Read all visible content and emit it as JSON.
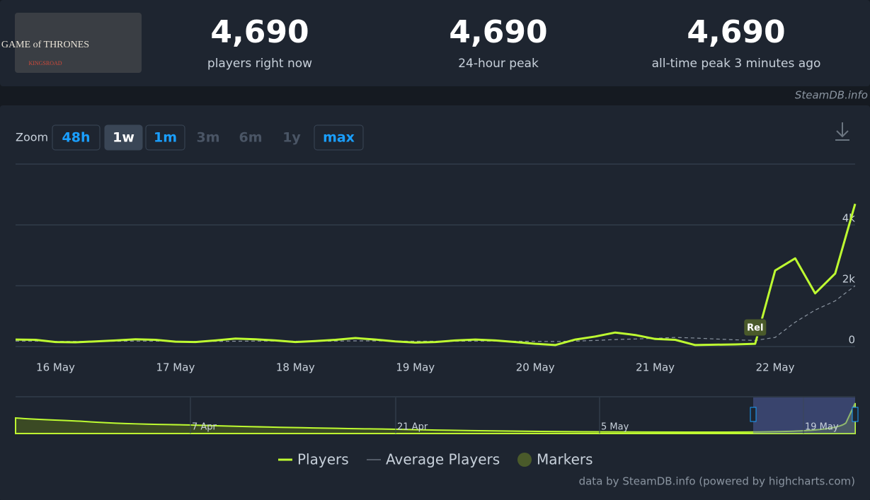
{
  "game_logo": [
    "GAME of THRONES",
    "KINGSROAD"
  ],
  "stats": [
    {
      "value": "4,690",
      "label": "players right now"
    },
    {
      "value": "4,690",
      "label": "24-hour peak"
    },
    {
      "value": "4,690",
      "label": "all-time peak 3 minutes ago"
    }
  ],
  "watermark": "SteamDB.info",
  "zoom": {
    "label": "Zoom",
    "buttons": [
      "48h",
      "1w",
      "1m",
      "3m",
      "6m",
      "1y",
      "max"
    ]
  },
  "chart_data": {
    "type": "line",
    "categories": [
      null,
      null,
      "16 May",
      null,
      null,
      null,
      null,
      null,
      "17 May",
      null,
      null,
      null,
      null,
      null,
      "18 May",
      null,
      null,
      null,
      null,
      null,
      "19 May",
      null,
      null,
      null,
      null,
      null,
      "20 May",
      null,
      null,
      null,
      null,
      null,
      "21 May",
      null,
      null,
      null,
      null,
      null,
      "22 May",
      null,
      null,
      null,
      null
    ],
    "series": [
      {
        "name": "Players",
        "color": "#befc31",
        "values": [
          230,
          220,
          150,
          140,
          170,
          200,
          240,
          220,
          160,
          150,
          200,
          260,
          240,
          200,
          150,
          180,
          220,
          280,
          230,
          170,
          130,
          150,
          200,
          230,
          200,
          150,
          90,
          50,
          230,
          330,
          460,
          380,
          250,
          220,
          50,
          60,
          70,
          90,
          2500,
          2900,
          1750,
          2400,
          4690
        ]
      },
      {
        "name": "Average Players",
        "color": "#8a94a0",
        "values": [
          180,
          180,
          170,
          170,
          170,
          175,
          180,
          180,
          175,
          170,
          170,
          175,
          180,
          180,
          175,
          175,
          180,
          185,
          185,
          180,
          175,
          175,
          175,
          180,
          180,
          175,
          170,
          165,
          180,
          200,
          230,
          250,
          270,
          300,
          280,
          250,
          220,
          200,
          300,
          800,
          1200,
          1500,
          2000
        ]
      }
    ],
    "annotations": [
      {
        "text": "Rel",
        "index": 37
      }
    ],
    "marker_legend": "Markers",
    "ylim": [
      0,
      6000
    ],
    "yticks": [
      0,
      {
        "value": 2000,
        "label": "2k"
      },
      {
        "value": 4000,
        "label": "4k"
      }
    ],
    "grid": true
  },
  "navigator": {
    "labels": [
      "7 Apr",
      "21 Apr",
      "5 May",
      "19 May"
    ]
  },
  "credit": "data by SteamDB.info (powered by highcharts.com)"
}
